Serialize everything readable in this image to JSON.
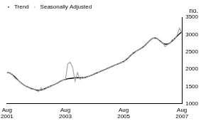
{
  "chart_data": {
    "type": "line",
    "ylabel": "no.",
    "categories": [
      "Aug 2001",
      null,
      null,
      null,
      null,
      null,
      null,
      null,
      null,
      null,
      null,
      null,
      null,
      null,
      null,
      null,
      null,
      null,
      null,
      null,
      null,
      null,
      null,
      null,
      "Aug 2003",
      null,
      null,
      null,
      null,
      null,
      null,
      null,
      null,
      null,
      null,
      null,
      null,
      null,
      null,
      null,
      null,
      null,
      null,
      null,
      null,
      null,
      null,
      null,
      "Aug 2005",
      null,
      null,
      null,
      null,
      null,
      null,
      null,
      null,
      null,
      null,
      null,
      null,
      null,
      null,
      null,
      null,
      null,
      null,
      null,
      null,
      null,
      null,
      null,
      "Aug 2007"
    ],
    "series": [
      {
        "name": "Trend",
        "color": "#000000",
        "values": [
          1900,
          1890,
          1850,
          1790,
          1720,
          1650,
          1590,
          1540,
          1500,
          1470,
          1440,
          1420,
          1400,
          1390,
          1400,
          1420,
          1450,
          1480,
          1510,
          1540,
          1570,
          1610,
          1650,
          1680,
          1700,
          1720,
          1730,
          1740,
          1750,
          1750,
          1750,
          1750,
          1760,
          1780,
          1800,
          1830,
          1860,
          1890,
          1920,
          1950,
          1980,
          2010,
          2040,
          2070,
          2100,
          2130,
          2160,
          2190,
          2220,
          2270,
          2330,
          2400,
          2460,
          2510,
          2550,
          2590,
          2640,
          2700,
          2770,
          2840,
          2890,
          2900,
          2870,
          2810,
          2750,
          2720,
          2720,
          2750,
          2810,
          2880,
          2950,
          3020,
          3080
        ]
      },
      {
        "name": "Seasonally Adjusted",
        "color": "#a6a6a6",
        "values": [
          1920,
          1880,
          1860,
          1760,
          1700,
          1660,
          1580,
          1550,
          1490,
          1480,
          1420,
          1430,
          1380,
          1350,
          1460,
          1400,
          1430,
          1500,
          1490,
          1550,
          1560,
          1620,
          1640,
          1690,
          1680,
          2150,
          2200,
          2050,
          1650,
          1900,
          1700,
          1780,
          1740,
          1770,
          1800,
          1820,
          1880,
          1870,
          1930,
          1960,
          1970,
          2020,
          2030,
          2080,
          2090,
          2140,
          2150,
          2200,
          2200,
          2290,
          2340,
          2380,
          2490,
          2500,
          2560,
          2580,
          2660,
          2680,
          2780,
          2830,
          2900,
          2880,
          2880,
          2790,
          2770,
          2650,
          2700,
          2740,
          2850,
          2850,
          2980,
          3180,
          3050
        ]
      }
    ],
    "ylim": [
      1000,
      3500
    ],
    "yticks": [
      1000,
      1500,
      2000,
      2500,
      3000,
      3500
    ],
    "grid": false,
    "legend": "top-left"
  }
}
